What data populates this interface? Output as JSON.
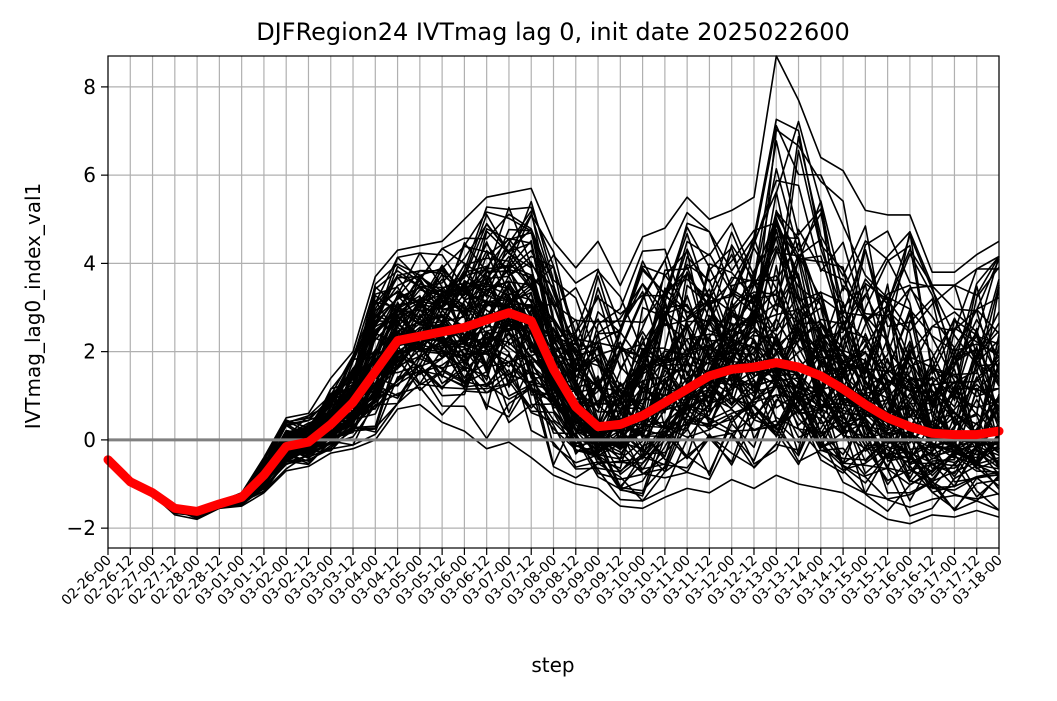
{
  "chart_data": {
    "type": "line",
    "title": "DJFRegion24 IVTmag lag 0, init date 2025022600",
    "xlabel": "step",
    "ylabel": "IVTmag_lag0_index_val1",
    "categories": [
      "02-26-00",
      "02-26-12",
      "02-27-00",
      "02-27-12",
      "02-28-00",
      "02-28-12",
      "03-01-00",
      "03-01-12",
      "03-02-00",
      "03-02-12",
      "03-03-00",
      "03-03-12",
      "03-04-00",
      "03-04-12",
      "03-05-00",
      "03-05-12",
      "03-06-00",
      "03-06-12",
      "03-07-00",
      "03-07-12",
      "03-08-00",
      "03-08-12",
      "03-09-00",
      "03-09-12",
      "03-10-00",
      "03-10-12",
      "03-11-00",
      "03-11-12",
      "03-12-00",
      "03-12-12",
      "03-13-00",
      "03-13-12",
      "03-14-00",
      "03-14-12",
      "03-15-00",
      "03-15-12",
      "03-16-00",
      "03-16-12",
      "03-17-00",
      "03-17-12",
      "03-18-00"
    ],
    "ylim": [
      -2.45,
      8.7
    ],
    "yticks": [
      -2,
      0,
      2,
      4,
      6,
      8
    ],
    "ytick_labels": [
      "−2",
      "0",
      "2",
      "4",
      "6",
      "8"
    ],
    "grid": true,
    "reference_line": {
      "y": 0,
      "color": "#808080"
    },
    "colors": {
      "members": "#000000",
      "mean": "#ff0000",
      "grid": "#b0b0b0"
    },
    "series": [
      {
        "role": "ensemble-mean",
        "values": [
          -0.45,
          -0.95,
          -1.2,
          -1.55,
          -1.62,
          -1.45,
          -1.3,
          -0.8,
          -0.15,
          -0.05,
          0.35,
          0.85,
          1.55,
          2.25,
          2.35,
          2.45,
          2.55,
          2.72,
          2.88,
          2.7,
          1.6,
          0.75,
          0.3,
          0.35,
          0.55,
          0.85,
          1.15,
          1.45,
          1.6,
          1.65,
          1.75,
          1.65,
          1.45,
          1.15,
          0.8,
          0.5,
          0.3,
          0.15,
          0.12,
          0.12,
          0.2
        ]
      },
      {
        "role": "member-envelope-max",
        "values": [
          -0.45,
          -0.9,
          -1.15,
          -1.5,
          -1.55,
          -1.4,
          -1.2,
          -0.4,
          0.5,
          0.6,
          1.4,
          2.0,
          3.7,
          4.3,
          4.4,
          4.5,
          5.0,
          5.5,
          5.6,
          5.7,
          4.5,
          3.9,
          4.5,
          3.5,
          4.6,
          4.8,
          5.5,
          5.0,
          5.2,
          5.5,
          8.7,
          7.7,
          6.4,
          6.1,
          5.2,
          5.1,
          5.1,
          3.8,
          3.8,
          4.2,
          4.5
        ]
      },
      {
        "role": "member-envelope-min",
        "values": [
          -0.5,
          -1.0,
          -1.25,
          -1.7,
          -1.8,
          -1.55,
          -1.5,
          -1.2,
          -0.7,
          -0.6,
          -0.3,
          -0.2,
          0.0,
          0.7,
          0.8,
          0.4,
          0.2,
          -0.2,
          -0.05,
          -0.4,
          -0.8,
          -1.0,
          -1.1,
          -1.5,
          -1.55,
          -1.3,
          -1.1,
          -1.2,
          -0.9,
          -1.1,
          -0.8,
          -1.0,
          -1.1,
          -1.2,
          -1.5,
          -1.8,
          -1.9,
          -1.7,
          -1.75,
          -1.6,
          -1.75
        ]
      }
    ],
    "ensemble_member_count": 100
  }
}
